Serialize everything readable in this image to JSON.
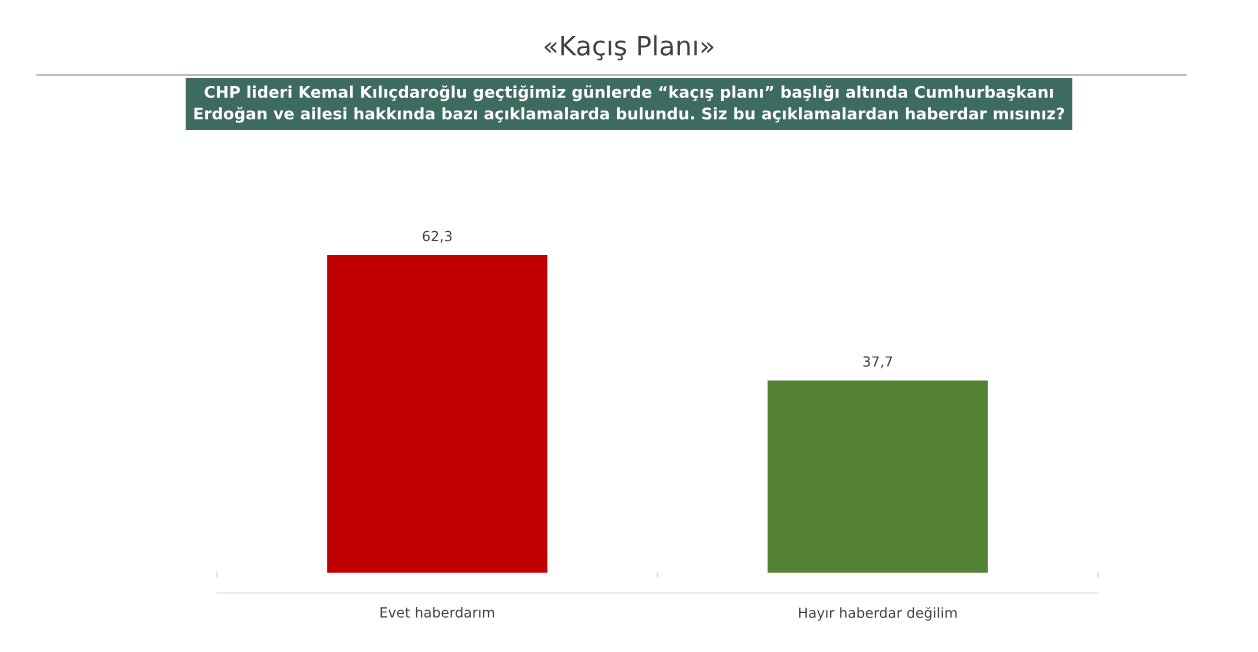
{
  "chart_data": {
    "type": "bar",
    "title": "«Kaçış Planı»",
    "subtitle": "CHP lideri Kemal Kılıçdaroğlu geçtiğimiz günlerde “kaçış planı” başlığı altında Cumhurbaşkanı\nErdoğan ve ailesi hakkında bazı açıklamalarda bulundu. Siz bu açıklamalardan haberdar mısınız?",
    "categories": [
      "Evet haberdarım",
      "Hayır haberdar değilim"
    ],
    "values": [
      62.3,
      37.7
    ],
    "colors": [
      "#c00000",
      "#548235"
    ],
    "value_labels": [
      "62,3",
      "37,7"
    ],
    "tick_labels": "x",
    "grid": false,
    "legend": false
  }
}
